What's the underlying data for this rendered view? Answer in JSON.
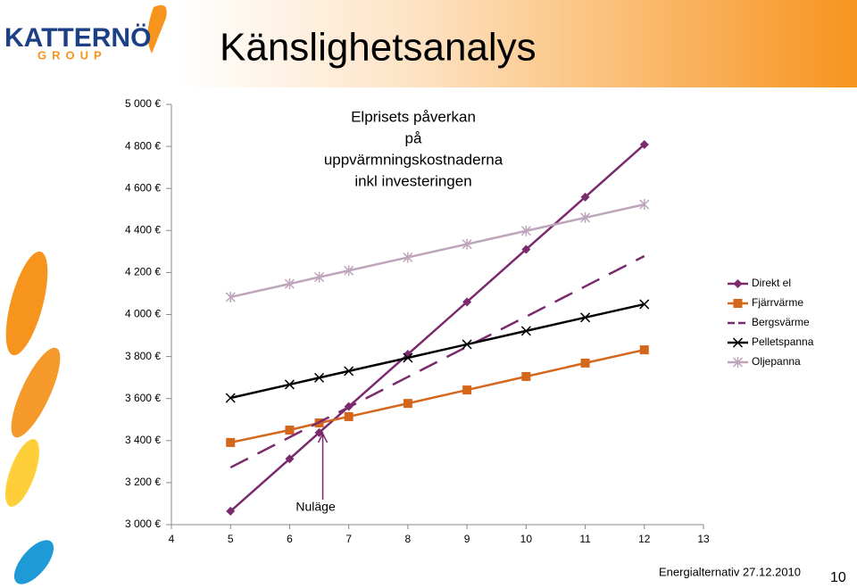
{
  "slide": {
    "title": "Känslighetsanalys",
    "logo": "KATTERNÖ",
    "logo_sub": "GROUP",
    "footer": "Energialternativ 27.12.2010",
    "page_number": "10"
  },
  "chart_data": {
    "type": "line",
    "title": [
      "Elprisets påverkan",
      "på",
      "uppvärmningskostnaderna",
      "inkl investeringen"
    ],
    "x": [
      5,
      6,
      6.5,
      7,
      8,
      9,
      10,
      11,
      12
    ],
    "series": [
      {
        "name": "Direkt el",
        "color": "#7b2a6e",
        "marker": "diamond",
        "dash": false,
        "values": [
          3064,
          3313,
          3438,
          3562,
          3811,
          4060,
          4310,
          4559,
          4809
        ]
      },
      {
        "name": "Fjärrvärme",
        "color": "#d5671d",
        "marker": "square",
        "dash": false,
        "values": [
          3391,
          3450,
          3484,
          3514,
          3577,
          3641,
          3705,
          3769,
          3832
        ]
      },
      {
        "name": "Bergsvärme",
        "color": "#7b2a6e",
        "marker": "none",
        "dash": true,
        "values": [
          3272,
          3416,
          3488,
          3559,
          3703,
          3847,
          3990,
          4134,
          4278
        ]
      },
      {
        "name": "Pelletspanna",
        "color": "#000000",
        "marker": "x",
        "dash": false,
        "values": [
          3603,
          3667,
          3699,
          3731,
          3794,
          3858,
          3922,
          3986,
          4049
        ]
      },
      {
        "name": "Oljepanna",
        "color": "#bda5bb",
        "marker": "star",
        "dash": false,
        "values": [
          4083,
          4146,
          4178,
          4209,
          4272,
          4335,
          4398,
          4461,
          4524
        ]
      }
    ],
    "xlim": [
      4,
      13
    ],
    "xticks": [
      4,
      5,
      6,
      7,
      8,
      9,
      10,
      11,
      12,
      13
    ],
    "ylim": [
      3000,
      5000
    ],
    "yticks": [
      {
        "value": 3000,
        "label": "3 000 €"
      },
      {
        "value": 3200,
        "label": "3 200 €"
      },
      {
        "value": 3400,
        "label": "3 400 €"
      },
      {
        "value": 3600,
        "label": "3 600 €"
      },
      {
        "value": 3800,
        "label": "3 800 €"
      },
      {
        "value": 4000,
        "label": "4 000 €"
      },
      {
        "value": 4200,
        "label": "4 200 €"
      },
      {
        "value": 4400,
        "label": "4 400 €"
      },
      {
        "value": 4600,
        "label": "4 600 €"
      },
      {
        "value": 4800,
        "label": "4 800 €"
      },
      {
        "value": 5000,
        "label": "5 000 €"
      }
    ],
    "grid": false,
    "legend": "right",
    "annotation": {
      "text": "Nuläge",
      "x": 6.5
    }
  }
}
